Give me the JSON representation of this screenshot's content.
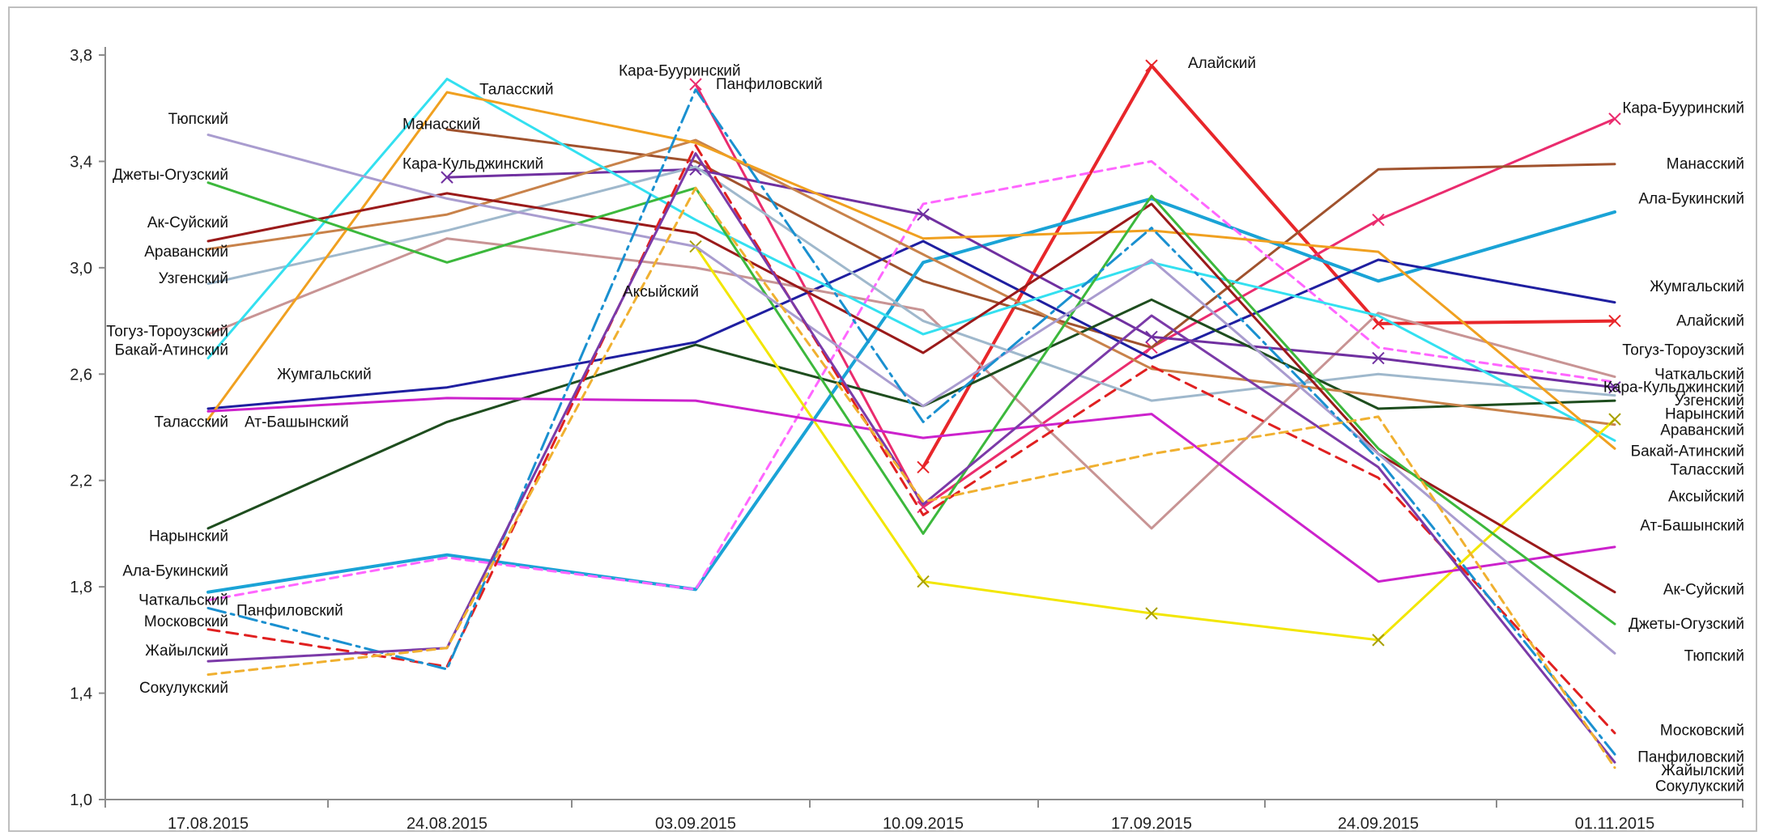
{
  "chart_data": {
    "type": "line",
    "title": "",
    "xlabel": "",
    "ylabel": "",
    "x": [
      "17.08.2015",
      "24.08.2015",
      "03.09.2015",
      "10.09.2015",
      "17.09.2015",
      "24.09.2015",
      "01.11.2015"
    ],
    "ylim": [
      1.0,
      3.8
    ],
    "yticks": [
      "1,0",
      "1,4",
      "1,8",
      "2,2",
      "2,6",
      "3,0",
      "3,4",
      "3,8"
    ],
    "grid": false,
    "legend": "none (series labelled at line ends)",
    "series": [
      {
        "name": "Алайский",
        "values": [
          null,
          null,
          null,
          2.25,
          3.76,
          2.79,
          2.8
        ],
        "color": "#e8262a",
        "width": 4,
        "marker": "x",
        "label_start": "",
        "label_end": "Алайский",
        "label_mid": "Алайский",
        "label_mid_index": 4
      },
      {
        "name": "Кара-Бууринский",
        "values": [
          null,
          null,
          3.69,
          2.1,
          2.7,
          3.18,
          3.56
        ],
        "color": "#ea2c6e",
        "width": 3,
        "marker": "x",
        "label_start": "",
        "label_end": "Кара-Бууринский",
        "label_mid": "Кара-Бууринский",
        "label_mid_index": 2
      },
      {
        "name": "Манасский",
        "values": [
          null,
          3.52,
          3.4,
          2.95,
          2.7,
          3.37,
          3.39
        ],
        "color": "#a0522d",
        "width": 3,
        "marker": "",
        "label_start": "",
        "label_end": "Манасский",
        "label_mid": "Манасский",
        "label_mid_index": 1
      },
      {
        "name": "Ала-Букинский",
        "values": [
          1.78,
          1.92,
          1.79,
          3.02,
          3.26,
          2.95,
          3.21
        ],
        "color": "#1aa3d6",
        "width": 4,
        "marker": "",
        "label_start": "Ала-Букинский",
        "label_end": "Ала-Букинский"
      },
      {
        "name": "Жумгальский",
        "values": [
          2.47,
          2.55,
          2.72,
          3.1,
          2.66,
          3.03,
          2.87
        ],
        "color": "#1f1fa0",
        "width": 3,
        "marker": "",
        "label_start": "",
        "label_end": "Жумгальский",
        "label_mid": "Жумгальский",
        "label_mid_index": 0
      },
      {
        "name": "Тогуз-Тороузский",
        "values": [
          2.75,
          3.11,
          3.0,
          2.84,
          2.02,
          2.83,
          2.59
        ],
        "color": "#c89494",
        "width": 3,
        "marker": "",
        "label_start": "Тогуз-Тороузский",
        "label_end": "Тогуз-Тороузский"
      },
      {
        "name": "Чаткальский",
        "values": [
          1.75,
          1.91,
          1.79,
          3.24,
          3.4,
          2.7,
          2.57
        ],
        "color": "#ff66ff",
        "width": 3,
        "marker": "",
        "dash": "10,7",
        "label_start": "Чаткальский",
        "label_end": "Чаткальский"
      },
      {
        "name": "Кара-Кульджинский",
        "values": [
          null,
          3.34,
          3.37,
          3.2,
          2.74,
          2.66,
          2.55
        ],
        "color": "#7030a0",
        "width": 3,
        "marker": "x",
        "label_start": "",
        "label_end": "Кара-Кульджинский",
        "label_mid": "Кара-Кульджинский",
        "label_mid_index": 1
      },
      {
        "name": "Узгенский",
        "values": [
          2.94,
          3.14,
          3.38,
          2.8,
          2.5,
          2.6,
          2.52
        ],
        "color": "#9fb8cc",
        "width": 3,
        "marker": "",
        "label_start": "Узгенский",
        "label_end": "Узгенский"
      },
      {
        "name": "Нарынский",
        "values": [
          2.02,
          2.42,
          2.71,
          2.48,
          2.88,
          2.47,
          2.5
        ],
        "color": "#1e4d1e",
        "width": 3,
        "marker": "",
        "label_start": "Нарынский",
        "label_end": "Нарынский"
      },
      {
        "name": "Араванский",
        "values": [
          3.07,
          3.2,
          3.48,
          3.05,
          2.62,
          2.52,
          2.41
        ],
        "color": "#c8824a",
        "width": 3,
        "marker": "",
        "label_start": "Араванский",
        "label_end": "Араванский"
      },
      {
        "name": "Бакай-Атинский",
        "values": [
          2.66,
          3.71,
          3.18,
          2.75,
          3.02,
          2.82,
          2.35
        ],
        "color": "#33e0f0",
        "width": 3,
        "marker": "",
        "label_start": "Бакай-Атинский",
        "label_end": "Бакай-Атинский"
      },
      {
        "name": "Таласский",
        "values": [
          2.43,
          3.66,
          3.47,
          3.11,
          3.14,
          3.06,
          2.32
        ],
        "color": "#f0a020",
        "width": 3,
        "marker": "",
        "label_start": "Таласский",
        "label_end": "Таласский",
        "label_mid": "Таласский",
        "label_mid_index": 1
      },
      {
        "name": "Аксыйский",
        "values": [
          null,
          null,
          3.08,
          1.82,
          1.7,
          1.6,
          2.43
        ],
        "color": "#f2e600",
        "width": 3,
        "marker": "x",
        "label_start": "",
        "label_end": "Аксыйский",
        "label_mid": "Аксыйский",
        "label_mid_index": 2
      },
      {
        "name": "Ат-Башынский",
        "values": [
          2.46,
          2.51,
          2.5,
          2.36,
          2.45,
          1.82,
          1.95
        ],
        "color": "#cc22cc",
        "width": 3,
        "marker": "",
        "label_start": "Ат-Башынский",
        "label_end": "Ат-Башынский"
      },
      {
        "name": "Ак-Суйский",
        "values": [
          3.1,
          3.28,
          3.13,
          2.68,
          3.24,
          2.3,
          1.78
        ],
        "color": "#9a1a1a",
        "width": 3,
        "marker": "",
        "label_start": "Ак-Суйский",
        "label_end": "Ак-Суйский"
      },
      {
        "name": "Джеты-Огузский",
        "values": [
          3.32,
          3.02,
          3.3,
          2.0,
          3.27,
          2.32,
          1.66
        ],
        "color": "#3cb83c",
        "width": 3,
        "marker": "",
        "label_start": "Джеты-Огузский",
        "label_end": "Джеты-Огузский"
      },
      {
        "name": "Тюпский",
        "values": [
          3.5,
          3.26,
          3.08,
          2.48,
          3.03,
          2.3,
          1.55
        ],
        "color": "#a99ccf",
        "width": 3,
        "marker": "",
        "label_start": "Тюпский",
        "label_end": "Тюпский"
      },
      {
        "name": "Московский",
        "values": [
          1.64,
          1.5,
          3.46,
          2.07,
          2.63,
          2.21,
          1.25
        ],
        "color": "#e02020",
        "width": 3,
        "marker": "",
        "dash": "14,9",
        "label_start": "Московский",
        "label_end": "Московский"
      },
      {
        "name": "Панфиловский",
        "values": [
          1.72,
          1.49,
          3.67,
          2.42,
          3.15,
          2.28,
          1.17
        ],
        "color": "#1a90d0",
        "width": 3,
        "marker": "",
        "dash": "22,7,4,7",
        "label_start": "Панфиловский",
        "label_end": "Панфиловский",
        "label_mid": "Панфиловский",
        "label_mid_index": 2
      },
      {
        "name": "Жайылский",
        "values": [
          1.52,
          1.57,
          3.43,
          2.11,
          2.82,
          2.25,
          1.14
        ],
        "color": "#7b3aa8",
        "width": 3,
        "marker": "",
        "label_start": "Жайылский",
        "label_end": "Жайылский"
      },
      {
        "name": "Сокулукский",
        "values": [
          1.47,
          1.57,
          3.3,
          2.12,
          2.3,
          2.44,
          1.12
        ],
        "color": "#f0b030",
        "width": 3,
        "marker": "",
        "dash": "10,7",
        "label_start": "Сокулукский",
        "label_end": "Сокулукский"
      }
    ],
    "labels_left": [
      {
        "text": "Тюпский",
        "y": 3.56
      },
      {
        "text": "Джеты-Огузский",
        "y": 3.35
      },
      {
        "text": "Ак-Суйский",
        "y": 3.17
      },
      {
        "text": "Араванский",
        "y": 3.06
      },
      {
        "text": "Узгенский",
        "y": 2.96
      },
      {
        "text": "Тогуз-Тороузский",
        "y": 2.76
      },
      {
        "text": "Бакай-Атинский",
        "y": 2.69
      },
      {
        "text": "Таласский",
        "y": 2.42
      },
      {
        "text": "Нарынский",
        "y": 1.99
      },
      {
        "text": "Ала-Букинский",
        "y": 1.86
      },
      {
        "text": "Чаткальский",
        "y": 1.75
      },
      {
        "text": "Московский",
        "y": 1.67
      },
      {
        "text": "Жайылский",
        "y": 1.56
      },
      {
        "text": "Сокулукский",
        "y": 1.42
      }
    ],
    "labels_left_inner": [
      {
        "text": "Жумгальский",
        "y": 2.6
      },
      {
        "text": "Ат-Башынский",
        "y": 2.42
      },
      {
        "text": "Панфиловский",
        "y": 1.71
      }
    ],
    "labels_right": [
      {
        "text": "Кара-Бууринский",
        "y": 3.6
      },
      {
        "text": "Манасский",
        "y": 3.39
      },
      {
        "text": "Ала-Букинский",
        "y": 3.26
      },
      {
        "text": "Жумгальский",
        "y": 2.93
      },
      {
        "text": "Алайский",
        "y": 2.8
      },
      {
        "text": "Тогуз-Тороузский",
        "y": 2.69
      },
      {
        "text": "Чаткальский",
        "y": 2.6
      },
      {
        "text": "Кара-Кульджинский",
        "y": 2.55
      },
      {
        "text": "Узгенский",
        "y": 2.5
      },
      {
        "text": "Нарынский",
        "y": 2.45
      },
      {
        "text": "Араванский",
        "y": 2.39
      },
      {
        "text": "Бакай-Атинский",
        "y": 2.31
      },
      {
        "text": "Таласский",
        "y": 2.24
      },
      {
        "text": "Аксыйский",
        "y": 2.14
      },
      {
        "text": "Ат-Башынский",
        "y": 2.03
      },
      {
        "text": "Ак-Суйский",
        "y": 1.79
      },
      {
        "text": "Джеты-Огузский",
        "y": 1.66
      },
      {
        "text": "Тюпский",
        "y": 1.54
      },
      {
        "text": "Московский",
        "y": 1.26
      },
      {
        "text": "Панфиловский",
        "y": 1.16
      },
      {
        "text": "Жайылский",
        "y": 1.11
      },
      {
        "text": "Сокулукский",
        "y": 1.05
      }
    ],
    "labels_mid": [
      {
        "text": "Кара-Бууринский",
        "x_index": 2,
        "y": 3.74,
        "dx": -95
      },
      {
        "text": "Панфиловский",
        "x_index": 2,
        "y": 3.69,
        "dx": 25
      },
      {
        "text": "Манасский",
        "x_index": 1,
        "y": 3.54,
        "dx": -55
      },
      {
        "text": "Таласский",
        "x_index": 1,
        "y": 3.67,
        "dx": 40
      },
      {
        "text": "Кара-Кульджинский",
        "x_index": 1,
        "y": 3.39,
        "dx": -55
      },
      {
        "text": "Аксыйский",
        "x_index": 2,
        "y": 2.91,
        "dx": -90
      },
      {
        "text": "Алайский",
        "x_index": 4,
        "y": 3.77,
        "dx": 45
      }
    ]
  }
}
